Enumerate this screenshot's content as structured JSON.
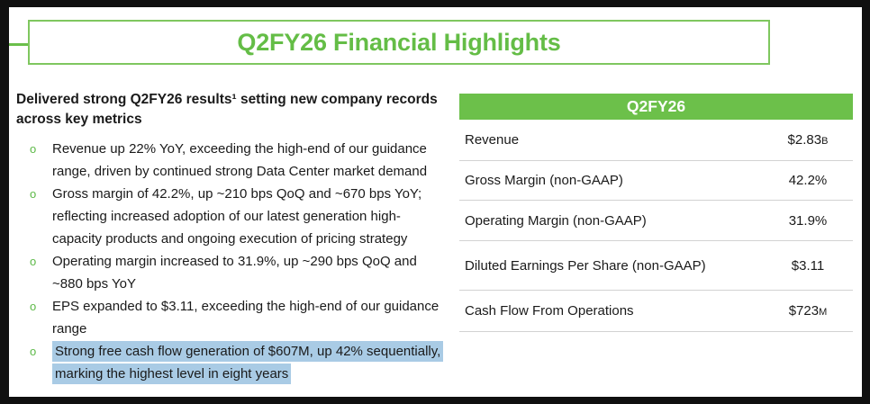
{
  "slide": {
    "title": "Q2FY26 Financial Highlights",
    "heading": "Delivered strong Q2FY26 results¹ setting new company records\nacross key metrics",
    "bullets": [
      {
        "marker": "o",
        "text": "Revenue up 22% YoY, exceeding the high-end of our guidance\nrange, driven by continued strong Data Center market demand",
        "highlighted": false
      },
      {
        "marker": "o",
        "text": "Gross margin of 42.2%, up ~210 bps QoQ and ~670 bps YoY;\nreflecting increased adoption of our latest generation high-\ncapacity products and ongoing execution of pricing strategy",
        "highlighted": false
      },
      {
        "marker": "o",
        "text": "Operating margin increased to 31.9%, up ~290 bps QoQ and\n~880 bps YoY",
        "highlighted": false
      },
      {
        "marker": "o",
        "text": "EPS expanded to $3.11, exceeding the high-end of our guidance\nrange",
        "highlighted": false
      },
      {
        "marker": "o",
        "text": "Strong free cash flow generation of $607M, up 42% sequentially,\nmarking the highest level in eight years",
        "highlighted": true
      }
    ],
    "table": {
      "header": "Q2FY26",
      "rows": [
        {
          "label": "Revenue",
          "value": "$2.83",
          "suffix": "B"
        },
        {
          "label": "Gross Margin (non-GAAP)",
          "value": "42.2%",
          "suffix": ""
        },
        {
          "label": "Operating Margin (non-GAAP)",
          "value": "31.9%",
          "suffix": ""
        },
        {
          "label": "Diluted Earnings Per Share (non-GAAP)",
          "value": "$3.11",
          "suffix": ""
        },
        {
          "label": "Cash Flow From Operations",
          "value": "$723",
          "suffix": "M"
        }
      ]
    },
    "colors": {
      "accent_green": "#6abf4a",
      "selection_highlight": "#a9cbe5",
      "header_text": "#ffffff",
      "body_text": "#1a1a1a",
      "row_separator": "#d2d2d2",
      "frame": "#101010"
    }
  }
}
